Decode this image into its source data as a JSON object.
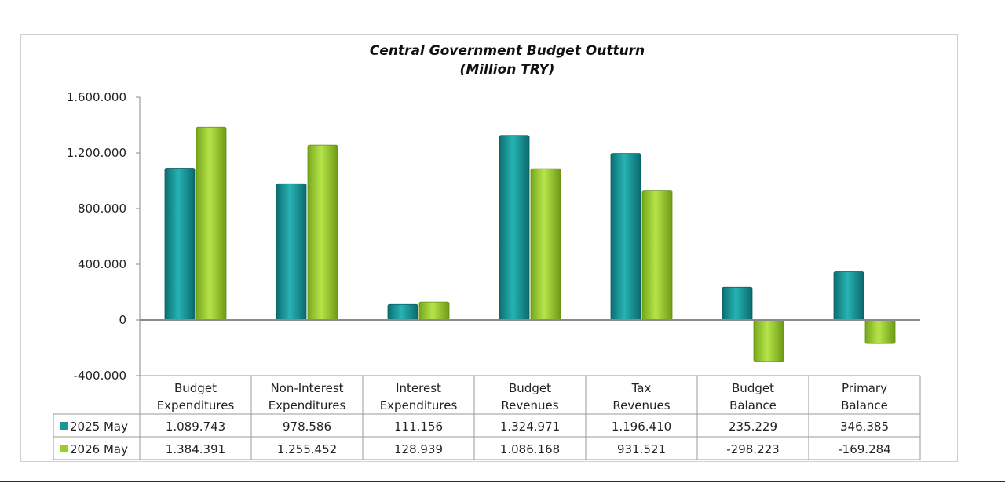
{
  "chart_data": {
    "type": "bar",
    "title": "Central Government Budget Outturn",
    "subtitle": "(Million TRY)",
    "categories": [
      [
        "Budget",
        "Expenditures"
      ],
      [
        "Non-Interest",
        "Expenditures"
      ],
      [
        "Interest",
        "Expenditures"
      ],
      [
        "Budget",
        "Revenues"
      ],
      [
        "Tax",
        "Revenues"
      ],
      [
        "Budget",
        "Balance"
      ],
      [
        "Primary",
        "Balance"
      ]
    ],
    "series": [
      {
        "name": "2025 May",
        "color": "#17979a",
        "values": [
          1089743,
          978586,
          111156,
          1324971,
          1196410,
          235229,
          346385
        ],
        "labels": [
          "1.089.743",
          "978.586",
          "111.156",
          "1.324.971",
          "1.196.410",
          "235.229",
          "346.385"
        ]
      },
      {
        "name": "2026 May",
        "color": "#9bcc2e",
        "values": [
          1384391,
          1255452,
          128939,
          1086168,
          931521,
          -298223,
          -169284
        ],
        "labels": [
          "1.384.391",
          "1.255.452",
          "128.939",
          "1.086.168",
          "931.521",
          "-298.223",
          "-169.284"
        ]
      }
    ],
    "ylim": [
      -400000,
      1600000
    ],
    "yticks": [
      -400000,
      0,
      400000,
      800000,
      1200000,
      1600000
    ],
    "ytick_labels": [
      "-400.000",
      "0",
      "400.000",
      "800.000",
      "1.200.000",
      "1.600.000"
    ],
    "legend": "data-table"
  }
}
